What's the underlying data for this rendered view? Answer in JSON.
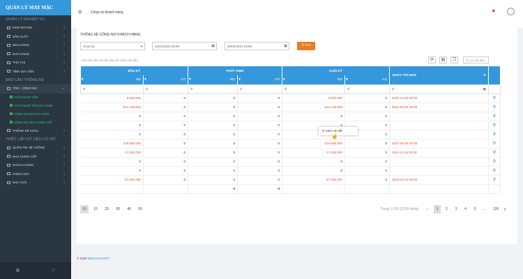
{
  "app": {
    "title": "QUẢN LÝ MAY MẶC"
  },
  "sidebar": {
    "section1": "QUẢN LÝ NGHIỆP VỤ",
    "items1": [
      "KINH DOANH",
      "SẢN XUẤT",
      "MUA HÀNG",
      "KHO HÀNG",
      "THU CHI",
      "TÍNH GIÁ VỐN"
    ],
    "section2": "BÁO CÁO THỐNG KÊ",
    "active": "TỒN - CÔNG NỢ",
    "subitems": [
      "XUẤT NHẬP TỒN",
      "XUẤT NHẬP TỒN MÃ CODE",
      "CÔNG NỢ KHÁCH HÀNG",
      "CÔNG NỢ NHÀ CUNG CẤP"
    ],
    "items2": [
      "THỐNG KÊ KHÁC"
    ],
    "section3": "THIẾT LẬP DỮ LIỆU CƠ SỞ",
    "items3": [
      "QUẢN TRỊ HỆ THỐNG",
      "NHÀ CUNG CẤP",
      "KHÁCH HÀNG",
      "HÀNG HÓA",
      "KHU VỰC"
    ]
  },
  "header": {
    "breadcrumb": "Công nợ khách hàng"
  },
  "panel": {
    "title": "THỐNG KÊ CÔNG NỢ KHÁCH HÀNG",
    "period_select": "Chọn kỳ",
    "date_from": "01/01/2024 00:00",
    "date_to": "29/02/2024 23:59",
    "search_button": "Tìm",
    "group_hint": "Kéo tiêu đề cột vào đây để nhóm dữ liệu",
    "filter_placeholder": "Lọc dữ liệu..."
  },
  "table": {
    "group_headers": [
      "ĐẦU KỲ",
      "PHÁT SINH",
      "CUỐI KỲ",
      "NGÀY TỚI HẠN"
    ],
    "sub_headers": [
      "NỢ",
      "CÓ",
      "NỢ",
      "CÓ",
      "NỢ",
      "CÓ"
    ],
    "rows": [
      [
        "9.600.000",
        "0",
        "0",
        "0",
        "9.600.000",
        "0",
        "2022-12-02 00:00"
      ],
      [
        "521.138.500",
        "0",
        "0",
        "0",
        "521.138.500",
        "0",
        "2022-05-24 00:00"
      ],
      [
        "0",
        "0",
        "0",
        "0",
        "0",
        "0",
        ""
      ],
      [
        "0",
        "0",
        "0",
        "0",
        "0",
        "0",
        ""
      ],
      [
        "0",
        "0",
        "0",
        "0",
        "0",
        "0",
        ""
      ],
      [
        "215.558.000",
        "0",
        "0",
        "0",
        "215.558.000",
        "0",
        "2022-05-25 00:00"
      ],
      [
        "17.000.000",
        "0",
        "0",
        "0",
        "17.000.000",
        "0",
        "2021-11-15 00:00"
      ],
      [
        "0",
        "0",
        "0",
        "0",
        "0",
        "0",
        ""
      ],
      [
        "0",
        "0",
        "0",
        "0",
        "0",
        "0",
        ""
      ],
      [
        "67.500.000",
        "0",
        "0",
        "0",
        "67.500.000",
        "0",
        "2023-10-12 00:00"
      ]
    ],
    "totals": [
      "",
      "",
      "0",
      "0",
      "",
      "",
      ""
    ]
  },
  "popup": {
    "label": "Xem chi tiết"
  },
  "pager": {
    "sizes": [
      "10",
      "15",
      "20",
      "30",
      "40",
      "50"
    ],
    "info": "Trang 1/126 (1259 dòng)",
    "pages": [
      "1",
      "2",
      "3",
      "4",
      "5",
      "...",
      "126"
    ]
  },
  "footer": {
    "copyright": "© 2020 ",
    "brand": "MEKONGSOFT"
  }
}
